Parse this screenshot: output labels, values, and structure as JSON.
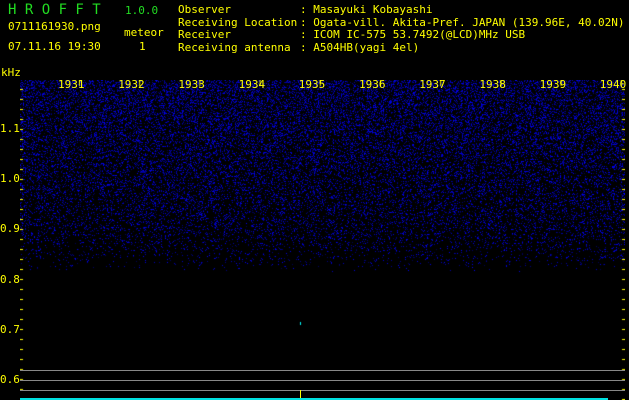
{
  "app": {
    "title": "H R O F F T",
    "version": "1.0.0"
  },
  "file": {
    "name": "0711161930.png",
    "datetime": "07.11.16 19:30"
  },
  "meteor": {
    "label": "meteor",
    "count": "1"
  },
  "info": [
    {
      "label": "Observer",
      "value": "Masayuki Kobayashi"
    },
    {
      "label": "Receiving Location",
      "value": "Ogata-vill. Akita-Pref. JAPAN (139.96E, 40.02N)"
    },
    {
      "label": "Receiver",
      "value": "ICOM IC-575 53.7492(@LCD)MHz USB"
    },
    {
      "label": "Receiving antenna",
      "value": "A504HB(yagi 4el)"
    }
  ],
  "axis": {
    "unit": "kHz",
    "y_ticks": [
      "1.1",
      "1.0",
      "0.9",
      "0.8",
      "0.7",
      "0.6"
    ],
    "x_ticks": [
      "1931",
      "1932",
      "1933",
      "1934",
      "1935",
      "1936",
      "1937",
      "1938",
      "1939",
      "1940"
    ]
  },
  "colors": {
    "text": "#ffff00",
    "title": "#22dd22",
    "noise": "#2020ff",
    "meteor": "#00ffff",
    "grid": "#888888"
  }
}
